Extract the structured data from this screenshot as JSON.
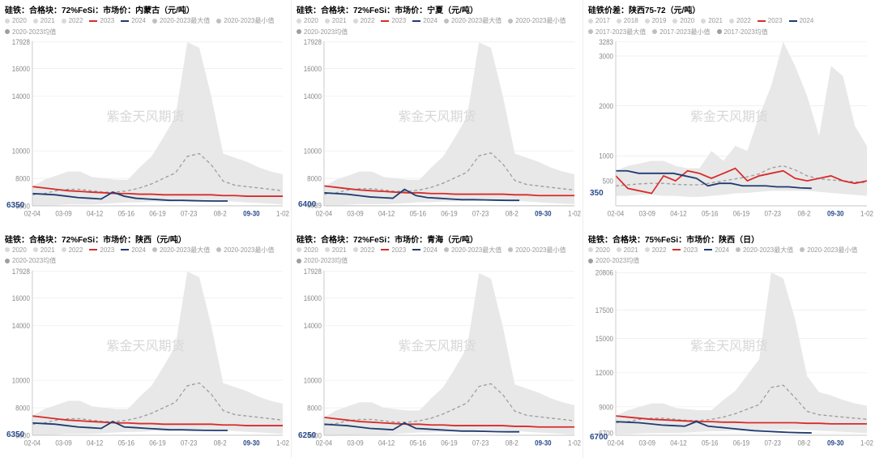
{
  "global": {
    "watermark_text": "紫金天风期货",
    "watermark_color": "#d7d7d7",
    "background_color": "#ffffff",
    "grid_color": "#e8e8e8",
    "axis_color": "#cccccc",
    "font_family": "Microsoft YaHei",
    "title_fontsize": 10,
    "legend_fontsize": 8,
    "axis_fontsize": 8,
    "highlight_date": "09-30",
    "highlight_color": "#2a4a8c",
    "x_ticks": [
      "02-04",
      "03-09",
      "04-12",
      "05-16",
      "06-19",
      "07-23",
      "08-2",
      "09-30",
      "1-02"
    ],
    "series_colors": {
      "2017": "#d9d9d9",
      "2018": "#d9d9d9",
      "2019": "#d9d9d9",
      "2020": "#d9d9d9",
      "2021": "#d9d9d9",
      "2022": "#d9d9d9",
      "2023": "#d82b2b",
      "2024": "#1f3b70",
      "max": "#bfbfbf",
      "min": "#bfbfbf",
      "mean": "#9e9e9e"
    },
    "line_styles": {
      "2023": {
        "width": 1.6
      },
      "2024": {
        "width": 1.6
      },
      "mean": {
        "width": 1.2,
        "dash": "4 3"
      },
      "band": {
        "fill": "#e8e8e8"
      }
    }
  },
  "charts": [
    {
      "id": "p1",
      "title": "硅铁：合格块：72%FeSi：市场价：内蒙古（元/吨）",
      "legend": [
        {
          "label": "2020",
          "color": "#d9d9d9",
          "style": "marker"
        },
        {
          "label": "2021",
          "color": "#d9d9d9",
          "style": "marker"
        },
        {
          "label": "2022",
          "color": "#d9d9d9",
          "style": "marker"
        },
        {
          "label": "2023",
          "color": "#d82b2b",
          "style": "line"
        },
        {
          "label": "2024",
          "color": "#1f3b70",
          "style": "line"
        },
        {
          "label": "2020-2023最大值",
          "color": "#bfbfbf",
          "style": "marker"
        },
        {
          "label": "2020-2023最小值",
          "color": "#bfbfbf",
          "style": "marker"
        },
        {
          "label": "2020-2023均值",
          "color": "#9e9e9e",
          "style": "marker"
        }
      ],
      "y_ticks": [
        6000,
        8000,
        10000,
        14000,
        16000,
        17928
      ],
      "y_lim": [
        6000,
        18000
      ],
      "latest_value": 6350,
      "band_max": [
        7400,
        7900,
        8200,
        8500,
        8500,
        8100,
        8000,
        7900,
        7900,
        8800,
        9600,
        11000,
        12500,
        17928,
        17500,
        14000,
        9800,
        9500,
        9200,
        8800,
        8500,
        8300
      ],
      "band_min": [
        6000,
        6000,
        6050,
        6100,
        6100,
        6100,
        6150,
        6200,
        6250,
        6250,
        6300,
        6300,
        6350,
        6350,
        6400,
        6400,
        6350,
        6300,
        6250,
        6200,
        6150,
        6100
      ],
      "mean": [
        6800,
        6900,
        7100,
        7200,
        7200,
        7100,
        7000,
        7000,
        7100,
        7300,
        7600,
        8000,
        8400,
        9600,
        9800,
        9000,
        7800,
        7500,
        7400,
        7300,
        7200,
        7100
      ],
      "series_2023": [
        7400,
        7300,
        7200,
        7100,
        7050,
        7000,
        6950,
        6900,
        6900,
        6850,
        6850,
        6800,
        6800,
        6800,
        6800,
        6800,
        6750,
        6750,
        6700,
        6700,
        6700,
        6700
      ],
      "series_2024": [
        6900,
        6850,
        6800,
        6700,
        6600,
        6550,
        6500,
        7000,
        6700,
        6550,
        6500,
        6450,
        6400,
        6400,
        6380,
        6360,
        6350,
        6350
      ]
    },
    {
      "id": "p2",
      "title": "硅铁：合格块：72%FeSi：市场价：宁夏（元/吨）",
      "legend": [
        {
          "label": "2020",
          "color": "#d9d9d9",
          "style": "marker"
        },
        {
          "label": "2021",
          "color": "#d9d9d9",
          "style": "marker"
        },
        {
          "label": "2022",
          "color": "#d9d9d9",
          "style": "marker"
        },
        {
          "label": "2023",
          "color": "#d82b2b",
          "style": "line"
        },
        {
          "label": "2024",
          "color": "#1f3b70",
          "style": "line"
        },
        {
          "label": "2020-2023最大值",
          "color": "#bfbfbf",
          "style": "marker"
        },
        {
          "label": "2020-2023最小值",
          "color": "#bfbfbf",
          "style": "marker"
        },
        {
          "label": "2020-2023均值",
          "color": "#9e9e9e",
          "style": "marker"
        }
      ],
      "y_ticks": [
        6039,
        8000,
        10000,
        14000,
        16000,
        17928
      ],
      "y_lim": [
        6000,
        18000
      ],
      "latest_value": 6400,
      "band_max": [
        7400,
        7900,
        8200,
        8500,
        8500,
        8100,
        8000,
        7900,
        7900,
        8800,
        9600,
        11000,
        12500,
        17900,
        17500,
        14000,
        9800,
        9500,
        9200,
        8800,
        8500,
        8300
      ],
      "band_min": [
        6039,
        6039,
        6080,
        6120,
        6120,
        6120,
        6160,
        6200,
        6260,
        6260,
        6320,
        6320,
        6360,
        6360,
        6420,
        6420,
        6360,
        6320,
        6260,
        6200,
        6160,
        6120
      ],
      "mean": [
        6850,
        6950,
        7150,
        7250,
        7250,
        7150,
        7050,
        7050,
        7150,
        7350,
        7650,
        8050,
        8450,
        9650,
        9850,
        9050,
        7850,
        7550,
        7450,
        7350,
        7250,
        7150
      ],
      "series_2023": [
        7450,
        7350,
        7250,
        7150,
        7100,
        7050,
        7000,
        6950,
        6950,
        6900,
        6900,
        6850,
        6850,
        6850,
        6850,
        6850,
        6800,
        6800,
        6750,
        6750,
        6750,
        6750
      ],
      "series_2024": [
        6950,
        6900,
        6850,
        6750,
        6650,
        6600,
        6550,
        7200,
        6750,
        6600,
        6550,
        6500,
        6450,
        6450,
        6430,
        6410,
        6400,
        6400
      ]
    },
    {
      "id": "p3",
      "title": "硅铁价差：陕西75-72（元/吨）",
      "legend": [
        {
          "label": "2017",
          "color": "#d9d9d9",
          "style": "marker"
        },
        {
          "label": "2018",
          "color": "#d9d9d9",
          "style": "marker"
        },
        {
          "label": "2019",
          "color": "#d9d9d9",
          "style": "marker"
        },
        {
          "label": "2020",
          "color": "#d9d9d9",
          "style": "marker"
        },
        {
          "label": "2021",
          "color": "#d9d9d9",
          "style": "marker"
        },
        {
          "label": "2022",
          "color": "#d9d9d9",
          "style": "marker"
        },
        {
          "label": "2023",
          "color": "#d82b2b",
          "style": "line"
        },
        {
          "label": "2024",
          "color": "#1f3b70",
          "style": "line"
        },
        {
          "label": "2017-2023最大值",
          "color": "#bfbfbf",
          "style": "marker"
        },
        {
          "label": "2017-2023最小值",
          "color": "#bfbfbf",
          "style": "marker"
        },
        {
          "label": "2017-2023均值",
          "color": "#9e9e9e",
          "style": "marker"
        }
      ],
      "y_ticks": [
        500,
        1000,
        2000,
        3000,
        3283
      ],
      "y_lim": [
        0,
        3300
      ],
      "latest_value": 350,
      "band_max": [
        700,
        800,
        850,
        900,
        900,
        800,
        750,
        750,
        1100,
        900,
        1200,
        1100,
        1800,
        2400,
        3283,
        2800,
        2200,
        1400,
        2800,
        2600,
        1600,
        1200
      ],
      "band_min": [
        200,
        200,
        220,
        220,
        200,
        200,
        180,
        180,
        200,
        220,
        250,
        260,
        280,
        300,
        300,
        300,
        300,
        280,
        260,
        240,
        220,
        200
      ],
      "mean": [
        400,
        420,
        440,
        450,
        450,
        430,
        420,
        420,
        460,
        500,
        540,
        580,
        640,
        760,
        800,
        720,
        600,
        540,
        520,
        500,
        480,
        460
      ],
      "series_2023": [
        600,
        350,
        300,
        250,
        600,
        500,
        700,
        650,
        550,
        650,
        750,
        500,
        600,
        650,
        700,
        550,
        500,
        550,
        600,
        500,
        450,
        500
      ],
      "series_2024": [
        700,
        700,
        650,
        650,
        650,
        650,
        600,
        550,
        400,
        450,
        450,
        400,
        400,
        400,
        380,
        380,
        360,
        350
      ]
    },
    {
      "id": "p4",
      "title": "硅铁：合格块：72%FeSi：市场价：陕西（元/吨）",
      "legend": [
        {
          "label": "2020",
          "color": "#d9d9d9",
          "style": "marker"
        },
        {
          "label": "2021",
          "color": "#d9d9d9",
          "style": "marker"
        },
        {
          "label": "2022",
          "color": "#d9d9d9",
          "style": "marker"
        },
        {
          "label": "2023",
          "color": "#d82b2b",
          "style": "line"
        },
        {
          "label": "2024",
          "color": "#1f3b70",
          "style": "line"
        },
        {
          "label": "2020-2023最大值",
          "color": "#bfbfbf",
          "style": "marker"
        },
        {
          "label": "2020-2023最小值",
          "color": "#bfbfbf",
          "style": "marker"
        },
        {
          "label": "2020-2023均值",
          "color": "#9e9e9e",
          "style": "marker"
        }
      ],
      "y_ticks": [
        6000,
        8000,
        10000,
        14000,
        16000,
        17928
      ],
      "y_lim": [
        6000,
        18000
      ],
      "latest_value": 6350,
      "band_max": [
        7400,
        7900,
        8200,
        8500,
        8500,
        8100,
        8000,
        7900,
        7900,
        8800,
        9600,
        11000,
        12500,
        17928,
        17500,
        14000,
        9800,
        9500,
        9200,
        8800,
        8500,
        8300
      ],
      "band_min": [
        6000,
        6000,
        6050,
        6100,
        6100,
        6100,
        6150,
        6200,
        6250,
        6250,
        6300,
        6300,
        6350,
        6350,
        6400,
        6400,
        6350,
        6300,
        6250,
        6200,
        6150,
        6100
      ],
      "mean": [
        6800,
        6900,
        7100,
        7200,
        7200,
        7100,
        7000,
        7000,
        7100,
        7300,
        7600,
        8000,
        8400,
        9600,
        9800,
        9000,
        7800,
        7500,
        7400,
        7300,
        7200,
        7100
      ],
      "series_2023": [
        7400,
        7300,
        7200,
        7100,
        7050,
        7000,
        6950,
        6900,
        6900,
        6850,
        6850,
        6800,
        6800,
        6800,
        6800,
        6800,
        6750,
        6750,
        6700,
        6700,
        6700,
        6700
      ],
      "series_2024": [
        6900,
        6850,
        6800,
        6700,
        6600,
        6550,
        6500,
        7000,
        6600,
        6550,
        6500,
        6450,
        6400,
        6400,
        6380,
        6360,
        6350,
        6350
      ]
    },
    {
      "id": "p5",
      "title": "硅铁：合格块：72%FeSi：市场价：青海（元/吨）",
      "legend": [
        {
          "label": "2020",
          "color": "#d9d9d9",
          "style": "marker"
        },
        {
          "label": "2021",
          "color": "#d9d9d9",
          "style": "marker"
        },
        {
          "label": "2022",
          "color": "#d9d9d9",
          "style": "marker"
        },
        {
          "label": "2023",
          "color": "#d82b2b",
          "style": "line"
        },
        {
          "label": "2024",
          "color": "#1f3b70",
          "style": "line"
        },
        {
          "label": "2020-2023最大值",
          "color": "#bfbfbf",
          "style": "marker"
        },
        {
          "label": "2020-2023最小值",
          "color": "#bfbfbf",
          "style": "marker"
        },
        {
          "label": "2020-2023均值",
          "color": "#9e9e9e",
          "style": "marker"
        }
      ],
      "y_ticks": [
        6000,
        8000,
        10000,
        14000,
        16000,
        17928
      ],
      "y_lim": [
        6000,
        18000
      ],
      "latest_value": 6250,
      "band_max": [
        7300,
        7800,
        8100,
        8400,
        8400,
        8000,
        7900,
        7800,
        7800,
        8700,
        9500,
        10900,
        12400,
        17800,
        17400,
        13900,
        9700,
        9400,
        9100,
        8700,
        8400,
        8200
      ],
      "band_min": [
        5950,
        5950,
        6000,
        6050,
        6050,
        6050,
        6100,
        6150,
        6200,
        6200,
        6250,
        6250,
        6300,
        6300,
        6350,
        6350,
        6300,
        6250,
        6200,
        6150,
        6100,
        6050
      ],
      "mean": [
        6750,
        6850,
        7050,
        7150,
        7150,
        7050,
        6950,
        6950,
        7050,
        7250,
        7550,
        7950,
        8350,
        9550,
        9750,
        8950,
        7750,
        7450,
        7350,
        7250,
        7150,
        7050
      ],
      "series_2023": [
        7300,
        7200,
        7100,
        7000,
        6950,
        6900,
        6850,
        6800,
        6800,
        6750,
        6750,
        6700,
        6700,
        6700,
        6700,
        6700,
        6650,
        6650,
        6600,
        6600,
        6600,
        6600
      ],
      "series_2024": [
        6800,
        6750,
        6700,
        6600,
        6500,
        6450,
        6400,
        6900,
        6500,
        6450,
        6400,
        6350,
        6300,
        6300,
        6280,
        6260,
        6250,
        6250
      ]
    },
    {
      "id": "p6",
      "title": "硅铁：合格块：75%FeSi：市场价：陕西（日）",
      "legend": [
        {
          "label": "2020",
          "color": "#d9d9d9",
          "style": "marker"
        },
        {
          "label": "2021",
          "color": "#d9d9d9",
          "style": "marker"
        },
        {
          "label": "2022",
          "color": "#d9d9d9",
          "style": "marker"
        },
        {
          "label": "2023",
          "color": "#d82b2b",
          "style": "line"
        },
        {
          "label": "2024",
          "color": "#1f3b70",
          "style": "line"
        },
        {
          "label": "2020-2023最大值",
          "color": "#bfbfbf",
          "style": "marker"
        },
        {
          "label": "2020-2023最小值",
          "color": "#bfbfbf",
          "style": "marker"
        },
        {
          "label": "2020-2023均值",
          "color": "#9e9e9e",
          "style": "marker"
        }
      ],
      "y_ticks": [
        6700,
        9000,
        12000,
        15000,
        17500,
        20806
      ],
      "y_lim": [
        6500,
        21000
      ],
      "latest_value": 6700,
      "band_max": [
        8200,
        8700,
        9000,
        9300,
        9300,
        8900,
        8800,
        8700,
        8700,
        9600,
        10400,
        11800,
        13200,
        20806,
        20300,
        16700,
        11700,
        10300,
        10000,
        9600,
        9300,
        9100
      ],
      "band_min": [
        6600,
        6600,
        6650,
        6700,
        6700,
        6700,
        6750,
        6800,
        6850,
        6850,
        6900,
        6900,
        6950,
        6950,
        7000,
        7000,
        6950,
        6900,
        6850,
        6800,
        6750,
        6700
      ],
      "mean": [
        7600,
        7700,
        7900,
        8000,
        8000,
        7900,
        7800,
        7800,
        7900,
        8100,
        8400,
        8800,
        9200,
        10700,
        10900,
        9800,
        8600,
        8300,
        8200,
        8100,
        8000,
        7900
      ],
      "series_2023": [
        8200,
        8100,
        8000,
        7900,
        7850,
        7800,
        7750,
        7700,
        7700,
        7650,
        7650,
        7600,
        7600,
        7600,
        7600,
        7600,
        7550,
        7550,
        7500,
        7500,
        7500,
        7500
      ],
      "series_2024": [
        7700,
        7650,
        7600,
        7500,
        7400,
        7350,
        7300,
        7700,
        7300,
        7200,
        7100,
        7000,
        6900,
        6850,
        6800,
        6750,
        6720,
        6700
      ]
    }
  ]
}
